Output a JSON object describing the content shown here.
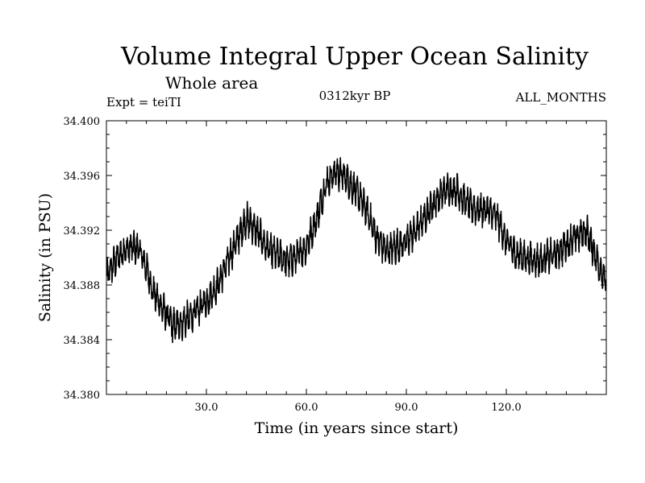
{
  "chart_data": {
    "type": "line",
    "title": "Volume Integral Upper Ocean Salinity",
    "subtitle": "Whole area",
    "experiment": "Expt = teiTI",
    "period": "0312kyr BP",
    "months": "ALL_MONTHS",
    "xlabel": "Time (in years since start)",
    "ylabel": "Salinity (in PSU)",
    "xlim": [
      0,
      150
    ],
    "ylim": [
      34.38,
      34.4
    ],
    "x_ticks": [
      30,
      60,
      90,
      120
    ],
    "x_tick_labels": [
      "30.0",
      "60.0",
      "90.0",
      "120.0"
    ],
    "y_ticks": [
      34.38,
      34.384,
      34.388,
      34.392,
      34.396,
      34.4
    ],
    "y_tick_labels": [
      "34.380",
      "34.384",
      "34.388",
      "34.392",
      "34.396",
      "34.400"
    ],
    "series": [
      {
        "name": "Salinity",
        "color": "#000000",
        "trend_x": [
          0,
          2,
          5,
          8,
          10,
          12,
          14,
          17,
          20,
          23,
          26,
          30,
          33,
          36,
          39,
          42,
          45,
          48,
          51,
          54,
          57,
          60,
          63,
          66,
          69,
          72,
          75,
          78,
          81,
          84,
          87,
          90,
          93,
          96,
          99,
          102,
          105,
          108,
          111,
          114,
          117,
          120,
          123,
          126,
          129,
          132,
          135,
          138,
          141,
          144,
          147,
          150
        ],
        "trend_y": [
          34.3885,
          34.3895,
          34.3905,
          34.3908,
          34.3905,
          34.3892,
          34.3875,
          34.3862,
          34.385,
          34.3853,
          34.3858,
          34.3868,
          34.3878,
          34.3895,
          34.3912,
          34.3928,
          34.392,
          34.3908,
          34.3902,
          34.3898,
          34.39,
          34.3908,
          34.3928,
          34.3955,
          34.3963,
          34.3958,
          34.3948,
          34.3935,
          34.3915,
          34.3905,
          34.3908,
          34.3912,
          34.392,
          34.3932,
          34.3942,
          34.395,
          34.395,
          34.394,
          34.3935,
          34.3935,
          34.393,
          34.3912,
          34.3902,
          34.39,
          34.3898,
          34.39,
          34.3902,
          34.391,
          34.3915,
          34.392,
          34.39,
          34.388
        ],
        "noise_amplitude_psu": 0.0014,
        "samples": 1800
      }
    ]
  }
}
